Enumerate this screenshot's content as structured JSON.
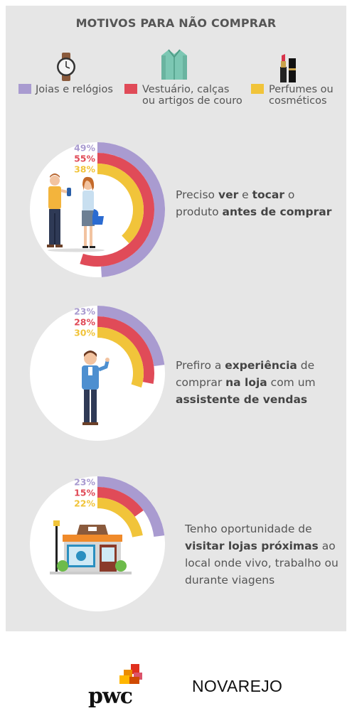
{
  "title": "MOTIVOS PARA NÃO COMPRAR",
  "colors": {
    "purple": "#a99bd0",
    "red": "#e04b58",
    "yellow": "#f1c43a",
    "circle": "#ffffff",
    "panel": "#e6e6e6"
  },
  "legend": [
    {
      "icon": "watch-icon",
      "label_lines": [
        "Joias e relógios"
      ]
    },
    {
      "icon": "jacket-icon",
      "label_lines": [
        "Vestuário, calças",
        "ou artigos de couro"
      ]
    },
    {
      "icon": "lipstick-icon",
      "label_lines": [
        "Perfumes ou",
        "cosméticos"
      ]
    }
  ],
  "chart_data": [
    {
      "type": "radial-bar",
      "categories": [
        "Joias e relógios",
        "Vestuário, calças ou artigos de couro",
        "Perfumes ou cosméticos"
      ],
      "values": [
        49,
        55,
        38
      ],
      "labels": [
        "49%",
        "55%",
        "38%"
      ],
      "description_parts": [
        [
          "Preciso ",
          false
        ],
        [
          "ver",
          true
        ],
        [
          " e ",
          false
        ],
        [
          "tocar",
          true
        ],
        [
          " o",
          false
        ],
        [
          "\n",
          false
        ],
        [
          "produto ",
          false
        ],
        [
          "antes de comprar",
          true
        ]
      ]
    },
    {
      "type": "radial-bar",
      "categories": [
        "Joias e relógios",
        "Vestuário, calças ou artigos de couro",
        "Perfumes ou cosméticos"
      ],
      "values": [
        23,
        28,
        30
      ],
      "labels": [
        "23%",
        "28%",
        "30%"
      ],
      "description_parts": [
        [
          "Prefiro a ",
          false
        ],
        [
          "experiência",
          true
        ],
        [
          " de",
          false
        ],
        [
          "\n",
          false
        ],
        [
          "comprar ",
          false
        ],
        [
          "na loja",
          true
        ],
        [
          " com um",
          false
        ],
        [
          "\n",
          false
        ],
        [
          "assistente de vendas",
          true
        ]
      ]
    },
    {
      "type": "radial-bar",
      "categories": [
        "Joias e relógios",
        "Vestuário, calças ou artigos de couro",
        "Perfumes ou cosméticos"
      ],
      "values": [
        23,
        15,
        22
      ],
      "labels": [
        "23%",
        "15%",
        "22%"
      ],
      "description_parts": [
        [
          "Tenho oportunidade de",
          false
        ],
        [
          "\n",
          false
        ],
        [
          "visitar lojas próximas",
          true
        ],
        [
          " ao",
          false
        ],
        [
          "\n",
          false
        ],
        [
          "local onde vivo, trabalho ou",
          false
        ],
        [
          "\n",
          false
        ],
        [
          "durante viagens",
          false
        ]
      ]
    }
  ],
  "logos": {
    "pwc": "pwc",
    "novarejo": "NOVAREJO"
  }
}
